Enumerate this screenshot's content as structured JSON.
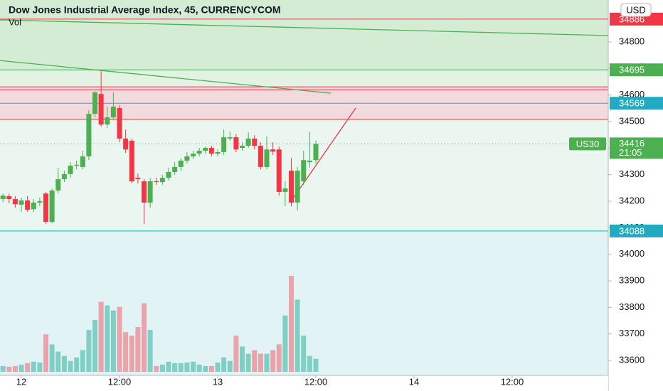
{
  "chart_data": {
    "type": "candlestick",
    "title": "Dow Jones Industrial Average Index, 45, CURRENCYCOM",
    "subtitle": "Vol",
    "currency": "USD",
    "xlim": [
      -2.61,
      71.74
    ],
    "ylim": [
      33544,
      34958
    ],
    "xticks": [
      {
        "value": 0,
        "label": "12"
      },
      {
        "value": 12,
        "label": "12:00"
      },
      {
        "value": 24,
        "label": "13"
      },
      {
        "value": 36,
        "label": "12:00"
      },
      {
        "value": 48,
        "label": "14"
      },
      {
        "value": 60,
        "label": "12:00"
      }
    ],
    "yticks": [
      33600,
      33700,
      33800,
      33900,
      34000,
      34100,
      34200,
      34300,
      34400,
      34500,
      34600,
      34700,
      34800
    ],
    "up_color": "#4caf50",
    "down_color": "#f23645",
    "volume_up_color": "#80cfc4",
    "volume_down_color": "#eaa3aa",
    "x": [
      -2.25,
      -1.5,
      -0.75,
      0,
      0.75,
      1.5,
      2.25,
      3,
      3.75,
      4.5,
      5.25,
      6,
      6.75,
      7.5,
      8.25,
      9,
      9.75,
      10.5,
      11.25,
      12,
      12.75,
      13.5,
      14.25,
      15,
      15.75,
      16.5,
      17.25,
      18,
      18.75,
      19.5,
      20.25,
      21,
      21.75,
      22.5,
      23.25,
      24,
      24.75,
      25.5,
      26.25,
      27,
      27.75,
      28.5,
      29.25,
      30,
      30.75,
      31.5,
      32.25,
      33,
      33.75,
      34.5,
      35.25,
      36
    ],
    "open": [
      34208,
      34219,
      34208,
      34187,
      34203,
      34170,
      34195,
      34229,
      34122,
      34240,
      34283,
      34302,
      34334,
      34329,
      34369,
      34529,
      34604,
      34489,
      34516,
      34551,
      34436,
      34428,
      34288,
      34275,
      34195,
      34275,
      34272,
      34288,
      34310,
      34329,
      34353,
      34369,
      34379,
      34390,
      34401,
      34379,
      34385,
      34436,
      34441,
      34401,
      34409,
      34436,
      34409,
      34329,
      34395,
      34395,
      34235,
      34315,
      34195,
      34275,
      34347,
      34355
    ],
    "high": [
      34229,
      34229,
      34219,
      34213,
      34219,
      34208,
      34213,
      34235,
      34248,
      34326,
      34315,
      34347,
      34353,
      34390,
      34543,
      34615,
      34690,
      34556,
      34610,
      34562,
      34470,
      34436,
      34304,
      34283,
      34288,
      34288,
      34299,
      34326,
      34347,
      34363,
      34385,
      34390,
      34401,
      34406,
      34409,
      34395,
      34470,
      34462,
      34454,
      34422,
      34460,
      34449,
      34422,
      34444,
      34422,
      34406,
      34275,
      34363,
      34329,
      34390,
      34462,
      34428
    ],
    "low": [
      34197,
      34192,
      34176,
      34160,
      34160,
      34160,
      34181,
      34114,
      34117,
      34229,
      34272,
      34288,
      34320,
      34320,
      34355,
      34516,
      34481,
      34476,
      34508,
      34422,
      34382,
      34267,
      34267,
      34114,
      34176,
      34262,
      34262,
      34278,
      34299,
      34315,
      34342,
      34358,
      34369,
      34379,
      34369,
      34369,
      34374,
      34428,
      34385,
      34390,
      34401,
      34395,
      34320,
      34320,
      34374,
      34221,
      34181,
      34181,
      34165,
      34262,
      34326,
      34342
    ],
    "close": [
      34221,
      34208,
      34189,
      34203,
      34168,
      34195,
      34200,
      34122,
      34240,
      34283,
      34302,
      34334,
      34337,
      34369,
      34529,
      34610,
      34489,
      34516,
      34556,
      34436,
      34395,
      34275,
      34283,
      34195,
      34275,
      34272,
      34288,
      34310,
      34329,
      34353,
      34369,
      34379,
      34390,
      34401,
      34379,
      34385,
      34441,
      34441,
      34395,
      34409,
      34436,
      34409,
      34329,
      34395,
      34387,
      34235,
      34248,
      34195,
      34315,
      34355,
      34353,
      34416
    ],
    "volume": [
      8,
      7,
      8,
      10,
      12,
      14,
      13,
      52,
      38,
      28,
      22,
      15,
      20,
      30,
      58,
      72,
      97,
      92,
      85,
      90,
      55,
      50,
      62,
      95,
      58,
      8,
      10,
      14,
      12,
      12,
      13,
      14,
      10,
      8,
      8,
      13,
      20,
      15,
      50,
      35,
      25,
      30,
      25,
      25,
      30,
      38,
      78,
      133,
      100,
      50,
      22,
      18
    ],
    "zones": [
      {
        "from": 34695,
        "to": 34958,
        "color": "#d5ecd4"
      },
      {
        "from": 34631,
        "to": 34695,
        "color": "#e4f2e3"
      },
      {
        "from": 34508,
        "to": 34631,
        "color": "#f3dadc"
      },
      {
        "from": 34088,
        "to": 34508,
        "color": "#eaf6ef"
      },
      {
        "from": 33544,
        "to": 34088,
        "color": "#e2f3f5"
      }
    ],
    "price_lines": [
      {
        "value": 34886,
        "color": "#f23645",
        "labeled": true
      },
      {
        "value": 34695,
        "color": "#4caf50",
        "labeled": true
      },
      {
        "value": 34631,
        "color": "#f23645",
        "labeled": false
      },
      {
        "value": 34620,
        "color": "#f23645",
        "labeled": false
      },
      {
        "value": 34569,
        "color": "#22abc0",
        "labeled": true
      },
      {
        "value": 34508,
        "color": "#f23645",
        "labeled": false
      },
      {
        "value": 34088,
        "color": "#22abc0",
        "labeled": true
      }
    ],
    "trend_lines": [
      {
        "x": [
          -2.61,
          71.74
        ],
        "y": [
          34883,
          34824
        ],
        "color": "#4caf50"
      },
      {
        "x": [
          -2.61,
          37.83
        ],
        "y": [
          34730,
          34607
        ],
        "color": "#4caf50"
      },
      {
        "x": [
          33.04,
          40.87
        ],
        "y": [
          34203,
          34551
        ],
        "color": "#f23645"
      }
    ],
    "last_price": {
      "symbol": "US30",
      "value": 34416,
      "countdown": "21:05",
      "color": "#4caf50"
    }
  }
}
